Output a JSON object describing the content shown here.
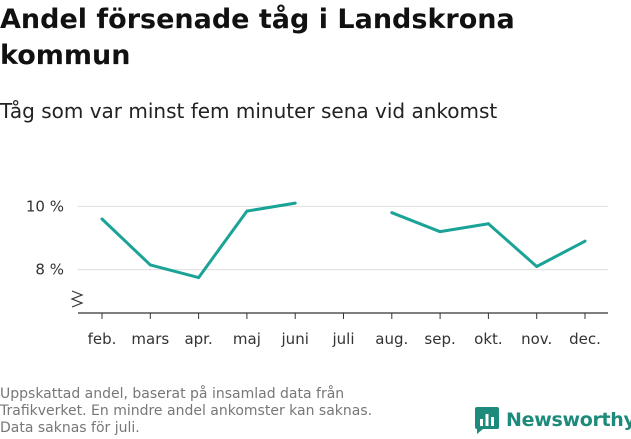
{
  "title": "Andel försenade tåg i Landskrona kommun",
  "subtitle": "Tåg som var minst fem minuter sena vid ankomst",
  "footnote": [
    "Uppskattad andel, baserat på insamlad data från",
    "Trafikverket. En mindre andel ankomster kan saknas.",
    "Data saknas för juli."
  ],
  "brand": {
    "name": "Newsworthy"
  },
  "colors": {
    "line": "#1aa396",
    "brand": "#1e8a7b",
    "grid": "#dddddd",
    "axis": "#333333"
  },
  "chart_data": {
    "type": "line",
    "categories": [
      "feb.",
      "mars",
      "apr.",
      "maj",
      "juni",
      "juli",
      "aug.",
      "sep.",
      "okt.",
      "nov.",
      "dec."
    ],
    "values": [
      9.6,
      8.15,
      7.75,
      9.85,
      10.1,
      null,
      9.8,
      9.2,
      9.45,
      8.1,
      8.9
    ],
    "yticks": [
      {
        "value": 8,
        "label": "8 %"
      },
      {
        "value": 10,
        "label": "10 %"
      }
    ],
    "ylim": [
      6.6,
      10.8
    ],
    "axis_break": true,
    "grid": true,
    "legend": "none"
  }
}
